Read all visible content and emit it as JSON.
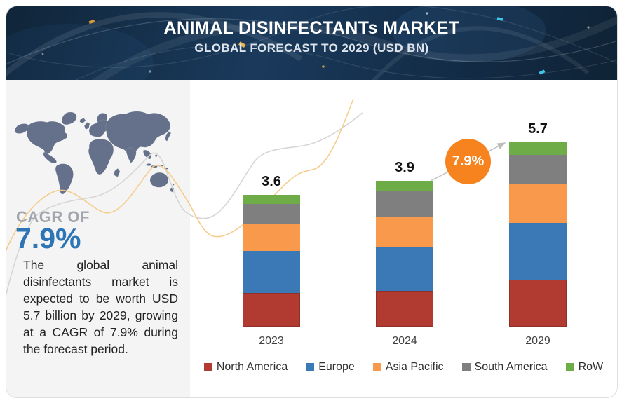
{
  "header": {
    "title": "ANIMAL DISINFECTANTs MARKET",
    "subtitle": "GLOBAL FORECAST TO 2029 (USD BN)"
  },
  "sidebar": {
    "cagr_label": "CAGR OF",
    "cagr_value": "7.9%",
    "description": "The global animal disinfectants market is expected to be worth USD 5.7 billion by 2029, growing at a CAGR of 7.9% during the forecast period.",
    "map_icon": "world-map"
  },
  "chart_data": {
    "type": "bar",
    "stacked": true,
    "title": "ANIMAL DISINFECTANTs MARKET",
    "subtitle": "GLOBAL FORECAST TO 2029 (USD BN)",
    "unit": "USD BN",
    "categories": [
      "2023",
      "2024",
      "2029"
    ],
    "totals": [
      3.6,
      3.9,
      5.7
    ],
    "series": [
      {
        "name": "North America",
        "color": "#b23b31",
        "values": [
          0.92,
          0.96,
          1.45
        ]
      },
      {
        "name": "Europe",
        "color": "#3a79b6",
        "values": [
          1.15,
          1.18,
          1.75
        ]
      },
      {
        "name": "Asia Pacific",
        "color": "#f8994b",
        "values": [
          0.73,
          0.81,
          1.22
        ]
      },
      {
        "name": "South America",
        "color": "#7f7f7f",
        "values": [
          0.55,
          0.68,
          0.9
        ]
      },
      {
        "name": "RoW",
        "color": "#6dac47",
        "values": [
          0.25,
          0.27,
          0.38
        ]
      }
    ],
    "growth_annotation": "7.9%",
    "data_labels": "totals above bars",
    "legend_position": "bottom",
    "grid": false,
    "ylim": [
      0,
      6
    ]
  },
  "colors": {
    "accent_orange": "#f6831d",
    "cagr_blue": "#2e75b6",
    "header_navy": "#15304a",
    "panel_gray": "#f4f4f5"
  }
}
